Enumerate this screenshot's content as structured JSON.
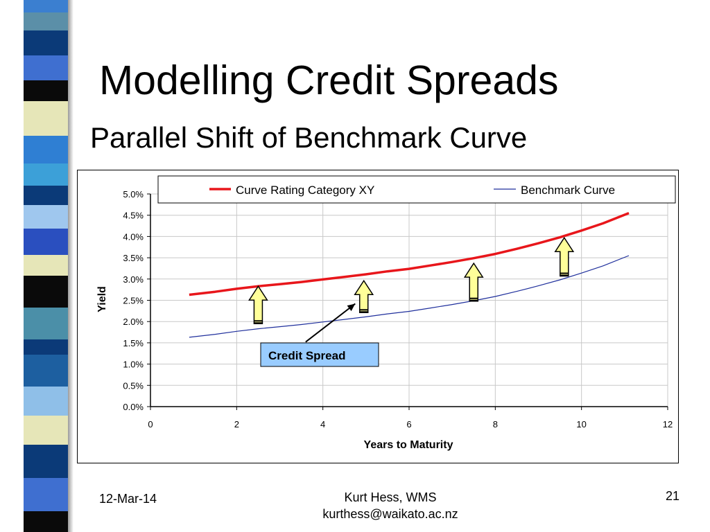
{
  "slide": {
    "title": "Modelling Credit Spreads",
    "subtitle": "Parallel Shift of Benchmark Curve"
  },
  "footer": {
    "date": "12-Mar-14",
    "author": "Kurt Hess, WMS",
    "email": "kurthess@waikato.ac.nz",
    "page": "21"
  },
  "colors": {
    "rating_curve": "#e8161b",
    "benchmark_curve": "#1f2f9c",
    "callout_fill": "#99ccff",
    "arrow_fill": "#ffff99"
  },
  "chart_data": {
    "type": "line",
    "xlabel": "Years to Maturity",
    "ylabel": "Yield",
    "xlim": [
      0,
      12
    ],
    "ylim": [
      0,
      0.05
    ],
    "x_ticks": [
      "0",
      "2",
      "4",
      "6",
      "8",
      "10",
      "12"
    ],
    "y_ticks": [
      "0.0%",
      "0.5%",
      "1.0%",
      "1.5%",
      "2.0%",
      "2.5%",
      "3.0%",
      "3.5%",
      "4.0%",
      "4.5%",
      "5.0%"
    ],
    "grid": true,
    "legend_position": "top",
    "series": [
      {
        "name": "Curve Rating Category XY",
        "x": [
          0.9,
          1.5,
          2,
          2.5,
          3,
          3.5,
          4,
          4.5,
          5,
          5.5,
          6,
          6.5,
          7,
          7.5,
          8,
          8.5,
          9,
          9.5,
          10,
          10.5,
          11.1
        ],
        "y": [
          0.0263,
          0.027,
          0.0277,
          0.0283,
          0.0288,
          0.0293,
          0.0299,
          0.0305,
          0.0311,
          0.0318,
          0.0324,
          0.0332,
          0.034,
          0.0349,
          0.0359,
          0.0371,
          0.0384,
          0.0398,
          0.0414,
          0.0431,
          0.0455
        ]
      },
      {
        "name": "Benchmark Curve",
        "x": [
          0.9,
          1.5,
          2,
          2.5,
          3,
          3.5,
          4,
          4.5,
          5,
          5.5,
          6,
          6.5,
          7,
          7.5,
          8,
          8.5,
          9,
          9.5,
          10,
          10.5,
          11.1
        ],
        "y": [
          0.0163,
          0.017,
          0.0177,
          0.0183,
          0.0188,
          0.0193,
          0.0199,
          0.0205,
          0.0211,
          0.0218,
          0.0224,
          0.0232,
          0.024,
          0.0249,
          0.0259,
          0.0271,
          0.0284,
          0.0298,
          0.0314,
          0.0331,
          0.0355
        ]
      }
    ],
    "annotation": {
      "text": "Credit Spread",
      "arrow_from": [
        3.6,
        0.0152
      ],
      "arrow_to": [
        4.75,
        0.0242
      ]
    },
    "shift_arrows": [
      {
        "x": 2.5,
        "y_from": 0.0195,
        "y_to": 0.0283
      },
      {
        "x": 4.95,
        "y_from": 0.0221,
        "y_to": 0.0296
      },
      {
        "x": 7.5,
        "y_from": 0.0248,
        "y_to": 0.0337
      },
      {
        "x": 9.6,
        "y_from": 0.0307,
        "y_to": 0.0397
      }
    ]
  }
}
